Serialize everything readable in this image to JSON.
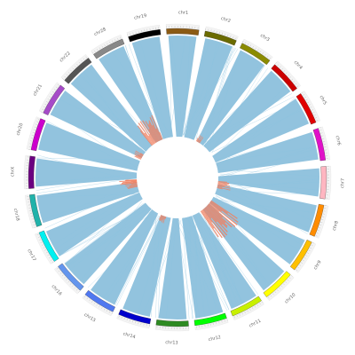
{
  "diagram": {
    "type": "circos",
    "chromosomes": [
      {
        "name": "chr1",
        "color": "#8B5A14"
      },
      {
        "name": "chr2",
        "color": "#6B6B00"
      },
      {
        "name": "chr3",
        "color": "#8B8B00"
      },
      {
        "name": "chr4",
        "color": "#CC0000"
      },
      {
        "name": "chr5",
        "color": "#E00000"
      },
      {
        "name": "chr6",
        "color": "#E010C8"
      },
      {
        "name": "chr7",
        "color": "#FFB6C1"
      },
      {
        "name": "chr8",
        "color": "#FF8C00"
      },
      {
        "name": "chr9",
        "color": "#FFC000"
      },
      {
        "name": "chr10",
        "color": "#FFFF00"
      },
      {
        "name": "chr11",
        "color": "#C8F000"
      },
      {
        "name": "chr12",
        "color": "#00FF00"
      },
      {
        "name": "chr13",
        "color": "#2E8B22"
      },
      {
        "name": "chr14",
        "color": "#0000CC"
      },
      {
        "name": "chr15",
        "color": "#5078F0"
      },
      {
        "name": "chr16",
        "color": "#6495ED"
      },
      {
        "name": "chr17",
        "color": "#00F0F0"
      },
      {
        "name": "chr18",
        "color": "#20B2AA"
      },
      {
        "name": "chrX",
        "color": "#6B0080"
      },
      {
        "name": "chr20",
        "color": "#CC00CC"
      },
      {
        "name": "chr21",
        "color": "#A64BC8"
      },
      {
        "name": "chr22",
        "color": "#555555"
      },
      {
        "name": "chr28",
        "color": "#888888"
      },
      {
        "name": "chr19",
        "color": "#000000"
      }
    ],
    "link_color": "#7fb8d8",
    "highlight_color": "#f08060"
  }
}
